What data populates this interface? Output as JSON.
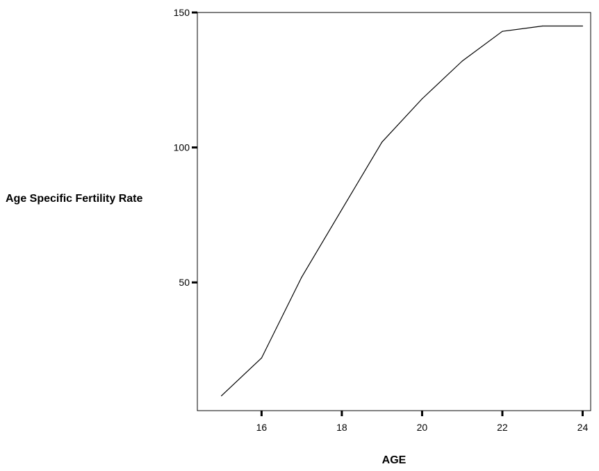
{
  "chart_data": {
    "type": "line",
    "title": "",
    "xlabel": "AGE",
    "ylabel": "Age Specific Fertility Rate",
    "x": [
      15,
      16,
      17,
      18,
      19,
      20,
      21,
      22,
      23,
      24
    ],
    "series": [
      {
        "values": [
          8,
          22,
          52,
          77,
          102,
          118,
          132,
          143,
          145,
          145
        ]
      }
    ],
    "xlim": [
      14.4,
      24.2
    ],
    "ylim": [
      2.5,
      150
    ],
    "xticks": [
      16,
      18,
      20,
      22,
      24
    ],
    "yticks": [
      50,
      100,
      150
    ],
    "grid": false,
    "line_color": "#000000",
    "frame_color": "#000000"
  }
}
